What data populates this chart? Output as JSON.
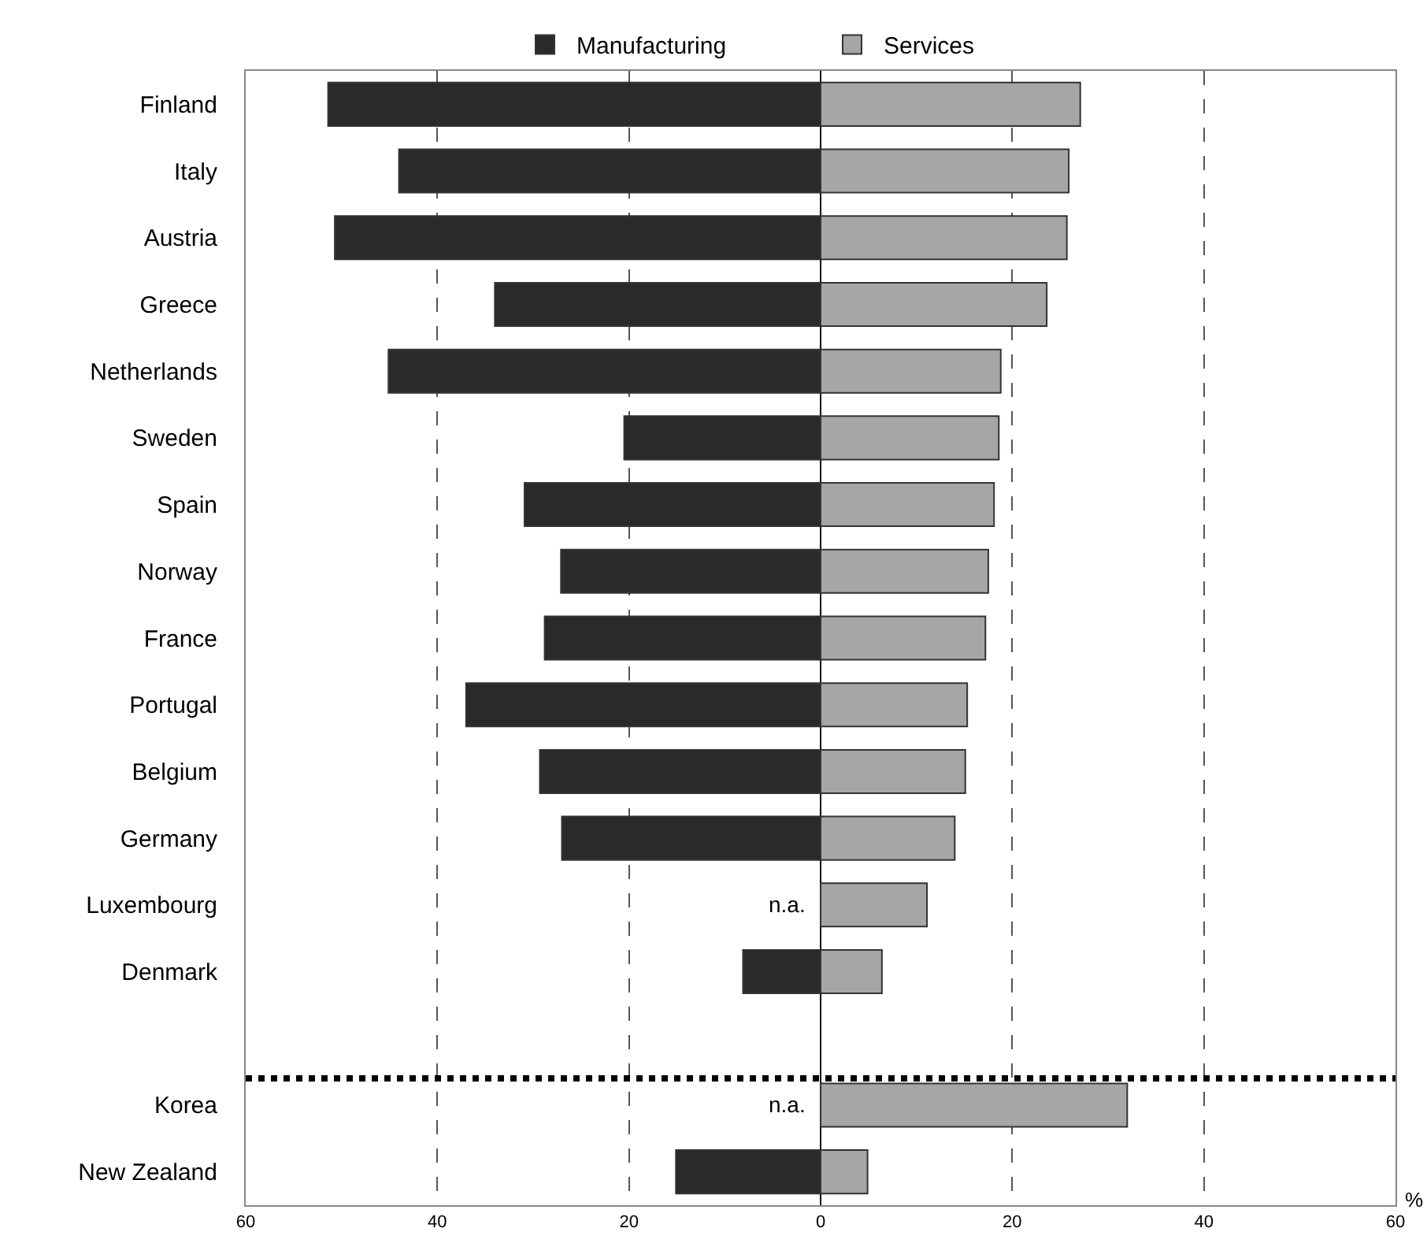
{
  "chart_data": {
    "type": "bar",
    "orientation": "horizontal",
    "categories": [
      "Finland",
      "Italy",
      "Austria",
      "Greece",
      "Netherlands",
      "Sweden",
      "Spain",
      "Norway",
      "France",
      "Portugal",
      "Belgium",
      "Germany",
      "Luxembourg",
      "Denmark",
      null,
      "Korea",
      "New Zealand"
    ],
    "series": [
      {
        "name": "Manufacturing",
        "color": "#2a2a2a",
        "values": [
          -51.4,
          -44.0,
          -50.7,
          -34.0,
          -45.1,
          -20.5,
          -30.9,
          -27.1,
          -28.8,
          -37.0,
          -29.3,
          -27.0,
          null,
          -8.1,
          null,
          null,
          -15.1
        ]
      },
      {
        "name": "Services",
        "color": "#a6a6a6",
        "values": [
          27.1,
          25.9,
          25.7,
          23.6,
          18.8,
          18.6,
          18.1,
          17.5,
          17.2,
          15.3,
          15.1,
          14.0,
          11.1,
          6.4,
          null,
          32.0,
          4.9
        ]
      }
    ],
    "xlim": [
      -60,
      60
    ],
    "xticks": [
      {
        "value": -60,
        "label": "60"
      },
      {
        "value": -40,
        "label": "40"
      },
      {
        "value": -20,
        "label": "20"
      },
      0,
      20,
      40,
      60
    ],
    "stacked": true,
    "grid": "x",
    "legend": "top",
    "ref_lines": [
      {
        "axis": "y",
        "value": "Korea",
        "line_style": "dotted",
        "color": "#000000"
      }
    ],
    "annotations": [
      {
        "text": "n.a.",
        "x": 0,
        "y": "Luxembourg"
      },
      {
        "text": "n.a.",
        "x": 0,
        "y": "Korea"
      },
      "%"
    ]
  }
}
